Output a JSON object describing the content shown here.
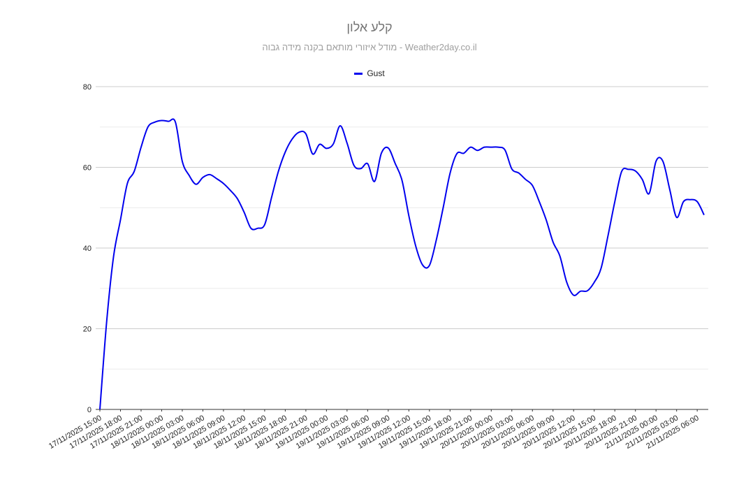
{
  "chart_data": {
    "type": "line",
    "title": "קלע אלון",
    "subtitle": "מודל איזורי מותאם בקנה מידה גבוה - Weather2day.co.il",
    "legend_position": "top-center",
    "grid": true,
    "ylim": [
      0,
      80
    ],
    "yticks": [
      0,
      20,
      40,
      60,
      80
    ],
    "xticks": [
      "17/11/2025 15:00",
      "17/11/2025 18:00",
      "17/11/2025 21:00",
      "18/11/2025 00:00",
      "18/11/2025 03:00",
      "18/11/2025 06:00",
      "18/11/2025 09:00",
      "18/11/2025 12:00",
      "18/11/2025 15:00",
      "18/11/2025 18:00",
      "18/11/2025 21:00",
      "19/11/2025 00:00",
      "19/11/2025 03:00",
      "19/11/2025 06:00",
      "19/11/2025 09:00",
      "19/11/2025 12:00",
      "19/11/2025 15:00",
      "19/11/2025 18:00",
      "19/11/2025 21:00",
      "20/11/2025 00:00",
      "20/11/2025 03:00",
      "20/11/2025 06:00",
      "20/11/2025 09:00",
      "20/11/2025 12:00",
      "20/11/2025 15:00",
      "20/11/2025 18:00",
      "20/11/2025 21:00",
      "21/11/2025 00:00",
      "21/11/2025 03:00",
      "21/11/2025 06:00"
    ],
    "series": [
      {
        "name": "Gust",
        "color": "#0000ee",
        "x": [
          "17/11/2025 15:00",
          "17/11/2025 16:00",
          "17/11/2025 17:00",
          "17/11/2025 18:00",
          "17/11/2025 19:00",
          "17/11/2025 20:00",
          "17/11/2025 21:00",
          "17/11/2025 22:00",
          "17/11/2025 23:00",
          "18/11/2025 00:00",
          "18/11/2025 01:00",
          "18/11/2025 02:00",
          "18/11/2025 03:00",
          "18/11/2025 04:00",
          "18/11/2025 05:00",
          "18/11/2025 06:00",
          "18/11/2025 07:00",
          "18/11/2025 08:00",
          "18/11/2025 09:00",
          "18/11/2025 10:00",
          "18/11/2025 11:00",
          "18/11/2025 12:00",
          "18/11/2025 13:00",
          "18/11/2025 14:00",
          "18/11/2025 15:00",
          "18/11/2025 16:00",
          "18/11/2025 17:00",
          "18/11/2025 18:00",
          "18/11/2025 19:00",
          "18/11/2025 20:00",
          "18/11/2025 21:00",
          "18/11/2025 22:00",
          "18/11/2025 23:00",
          "19/11/2025 00:00",
          "19/11/2025 01:00",
          "19/11/2025 02:00",
          "19/11/2025 03:00",
          "19/11/2025 04:00",
          "19/11/2025 05:00",
          "19/11/2025 06:00",
          "19/11/2025 07:00",
          "19/11/2025 08:00",
          "19/11/2025 09:00",
          "19/11/2025 10:00",
          "19/11/2025 11:00",
          "19/11/2025 12:00",
          "19/11/2025 13:00",
          "19/11/2025 14:00",
          "19/11/2025 15:00",
          "19/11/2025 16:00",
          "19/11/2025 17:00",
          "19/11/2025 18:00",
          "19/11/2025 19:00",
          "19/11/2025 20:00",
          "19/11/2025 21:00",
          "19/11/2025 22:00",
          "19/11/2025 23:00",
          "20/11/2025 00:00",
          "20/11/2025 01:00",
          "20/11/2025 02:00",
          "20/11/2025 03:00",
          "20/11/2025 04:00",
          "20/11/2025 05:00",
          "20/11/2025 06:00",
          "20/11/2025 07:00",
          "20/11/2025 08:00",
          "20/11/2025 09:00",
          "20/11/2025 10:00",
          "20/11/2025 11:00",
          "20/11/2025 12:00",
          "20/11/2025 13:00",
          "20/11/2025 14:00",
          "20/11/2025 15:00",
          "20/11/2025 16:00",
          "20/11/2025 17:00",
          "20/11/2025 18:00",
          "20/11/2025 19:00",
          "20/11/2025 20:00",
          "20/11/2025 21:00",
          "20/11/2025 22:00",
          "20/11/2025 23:00",
          "21/11/2025 00:00",
          "21/11/2025 01:00",
          "21/11/2025 02:00",
          "21/11/2025 03:00",
          "21/11/2025 04:00",
          "21/11/2025 05:00",
          "21/11/2025 06:00",
          "21/11/2025 07:00"
        ],
        "values": [
          0,
          22,
          38,
          47,
          56,
          59,
          65,
          70,
          71.2,
          71.6,
          71.4,
          71.2,
          61.5,
          58,
          55.8,
          57.5,
          58.2,
          57.2,
          56,
          54.3,
          52.3,
          48.9,
          44.9,
          44.9,
          45.8,
          52.5,
          59,
          63.8,
          67,
          68.7,
          68.3,
          63.3,
          65.7,
          64.7,
          65.8,
          70.3,
          66,
          60.5,
          59.7,
          60.9,
          56.5,
          63.5,
          64.8,
          61,
          56.8,
          48,
          40.5,
          35.8,
          35.7,
          42,
          50,
          58.5,
          63.4,
          63.5,
          65,
          64.2,
          65,
          65,
          65,
          64.3,
          59.6,
          58.6,
          57,
          55.5,
          51.5,
          47,
          41.5,
          38,
          31.5,
          28.3,
          29.3,
          29.4,
          31.5,
          35,
          43,
          51.5,
          59,
          59.5,
          59.1,
          57,
          53.5,
          61.5,
          61.5,
          54.5,
          47.6,
          51.5,
          52,
          51.5,
          48.2
        ]
      }
    ]
  }
}
